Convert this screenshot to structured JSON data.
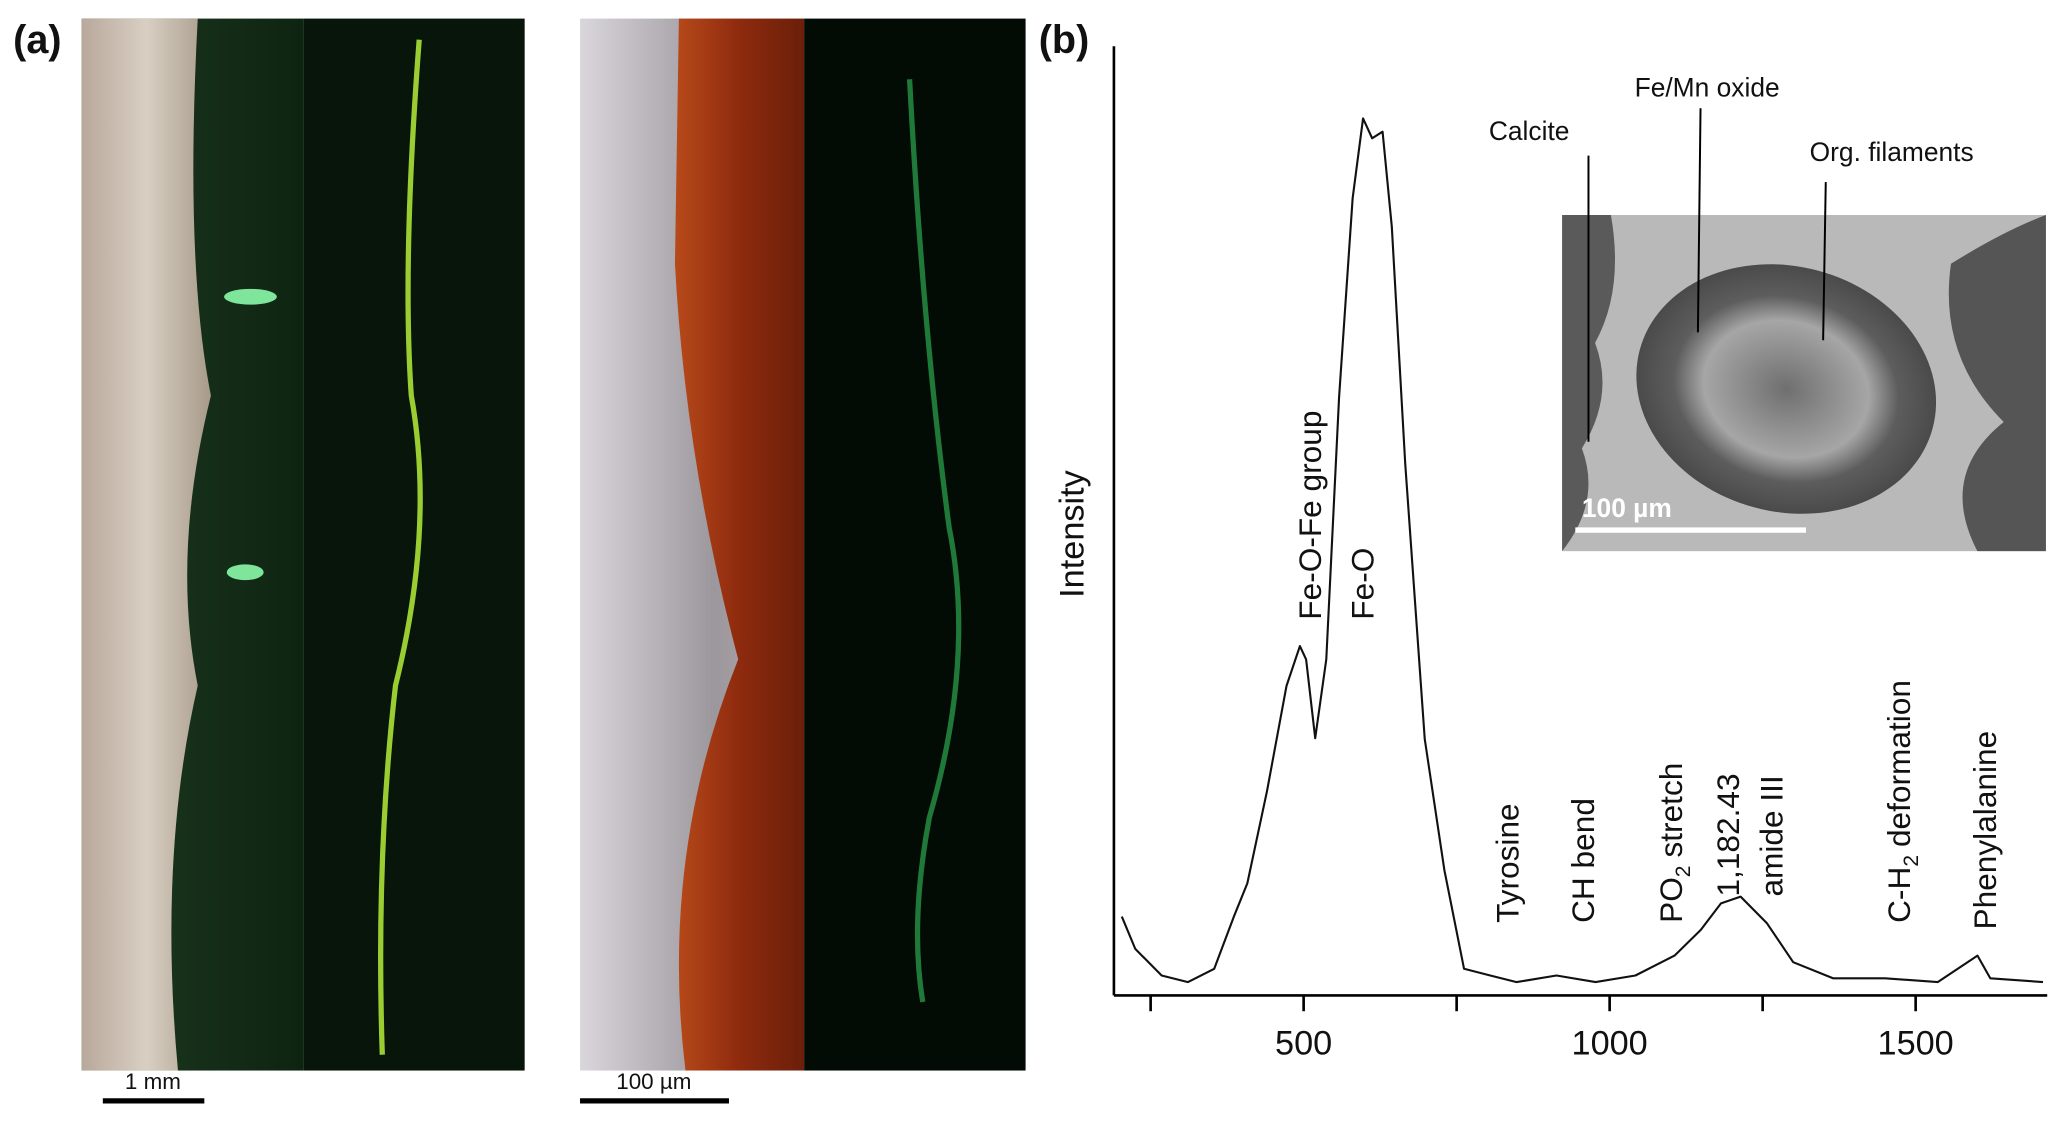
{
  "panel_a": {
    "label": "(a)",
    "scale_bar_left": "1 mm",
    "scale_bar_right": "100 µm"
  },
  "panel_b": {
    "label": "(b)",
    "inset": {
      "labels": [
        "Calcite",
        "Fe/Mn oxide",
        "Org. filaments"
      ],
      "scale_bar": "100 µm"
    }
  },
  "chart_data": {
    "type": "line",
    "y_label": "Intensity",
    "x": [
      203,
      225,
      268,
      311,
      354,
      386,
      408,
      440,
      472,
      494,
      504,
      519,
      537,
      558,
      580,
      597,
      612,
      629,
      644,
      666,
      698,
      730,
      762,
      805,
      848,
      913,
      977,
      1042,
      1106,
      1149,
      1182,
      1214,
      1257,
      1300,
      1365,
      1450,
      1536,
      1601,
      1622,
      1708
    ],
    "values": [
      8.3,
      4.9,
      2.1,
      1.4,
      2.8,
      8.3,
      11.8,
      21.5,
      32.6,
      36.8,
      35.4,
      27.1,
      35.4,
      63,
      84,
      92.4,
      90.3,
      91,
      81,
      56,
      27,
      13.2,
      2.8,
      2.1,
      1.4,
      2.1,
      1.4,
      2.1,
      4.2,
      6.9,
      9.7,
      10.4,
      7.6,
      3.5,
      1.8,
      1.8,
      1.4,
      4.2,
      1.8,
      1.4
    ],
    "color": "#111111",
    "xlim": [
      190,
      1715
    ],
    "ylim": [
      0,
      100
    ],
    "xticks": [
      500,
      1000,
      1500
    ],
    "xminor_ticks": [
      250,
      750,
      1250
    ],
    "annotations": [
      {
        "parts": [
          "Fe-O-Fe group"
        ]
      },
      {
        "parts": [
          "Fe-O"
        ]
      },
      {
        "parts": [
          "Tyrosine"
        ]
      },
      {
        "parts": [
          "CH bend"
        ]
      },
      {
        "parts": [
          "PO",
          "2",
          "stretch"
        ]
      },
      {
        "parts": [
          "1,182.43"
        ]
      },
      {
        "parts": [
          "amide III"
        ]
      },
      {
        "parts": [
          "C-H",
          "2",
          "deformation"
        ]
      },
      {
        "parts": [
          "Phenylalanine"
        ]
      }
    ]
  }
}
